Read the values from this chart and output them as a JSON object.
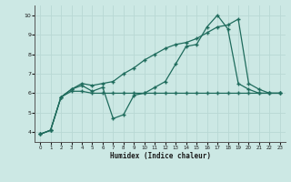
{
  "xlabel": "Humidex (Indice chaleur)",
  "bg_color": "#cce8e4",
  "grid_color": "#b8d8d4",
  "line_color": "#1e6b5c",
  "xlim": [
    -0.5,
    23.5
  ],
  "ylim": [
    3.5,
    10.5
  ],
  "yticks": [
    4,
    5,
    6,
    7,
    8,
    9,
    10
  ],
  "xticks": [
    0,
    1,
    2,
    3,
    4,
    5,
    6,
    7,
    8,
    9,
    10,
    11,
    12,
    13,
    14,
    15,
    16,
    17,
    18,
    19,
    20,
    21,
    22,
    23
  ],
  "series": [
    {
      "x": [
        0,
        1,
        2,
        3,
        4,
        5,
        6,
        7,
        8,
        9,
        10,
        11,
        12,
        13,
        14,
        15,
        16,
        17,
        18,
        19,
        20,
        21,
        22,
        23
      ],
      "y": [
        3.9,
        4.1,
        5.8,
        6.2,
        6.5,
        6.4,
        6.5,
        6.6,
        7.0,
        7.3,
        7.7,
        8.0,
        8.3,
        8.5,
        8.6,
        8.8,
        9.1,
        9.4,
        9.5,
        9.8,
        6.5,
        6.2,
        6.0,
        6.0
      ]
    },
    {
      "x": [
        0,
        1,
        2,
        3,
        4,
        5,
        6,
        7,
        8,
        9,
        10,
        11,
        12,
        13,
        14,
        15,
        16,
        17,
        18,
        19,
        20,
        21,
        22,
        23
      ],
      "y": [
        3.9,
        4.1,
        5.8,
        6.1,
        6.1,
        6.0,
        6.0,
        6.0,
        6.0,
        6.0,
        6.0,
        6.0,
        6.0,
        6.0,
        6.0,
        6.0,
        6.0,
        6.0,
        6.0,
        6.0,
        6.0,
        6.0,
        6.0,
        6.0
      ]
    },
    {
      "x": [
        0,
        1,
        2,
        3,
        4,
        5,
        6,
        7,
        8,
        9,
        10,
        11,
        12,
        13,
        14,
        15,
        16,
        17,
        18,
        19,
        20,
        21,
        22,
        23
      ],
      "y": [
        3.9,
        4.1,
        5.8,
        6.2,
        6.4,
        6.1,
        6.3,
        4.7,
        4.9,
        5.9,
        6.0,
        6.3,
        6.6,
        7.5,
        8.4,
        8.5,
        9.4,
        10.0,
        9.3,
        6.5,
        6.2,
        6.0,
        6.0,
        6.0
      ]
    }
  ]
}
